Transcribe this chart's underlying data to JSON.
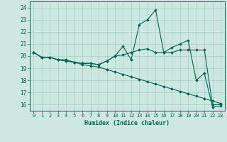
{
  "xlabel": "Humidex (Indice chaleur)",
  "xlim": [
    -0.5,
    23.5
  ],
  "ylim": [
    15.5,
    24.5
  ],
  "yticks": [
    16,
    17,
    18,
    19,
    20,
    21,
    22,
    23,
    24
  ],
  "xticks": [
    0,
    1,
    2,
    3,
    4,
    5,
    6,
    7,
    8,
    9,
    10,
    11,
    12,
    13,
    14,
    15,
    16,
    17,
    18,
    19,
    20,
    21,
    22,
    23
  ],
  "bg_color": "#cce8e0",
  "grid_color": "#a8ccc8",
  "line_color": "#006858",
  "series": [
    [
      20.3,
      19.9,
      19.9,
      19.7,
      19.7,
      19.5,
      19.4,
      19.4,
      19.3,
      19.6,
      20.0,
      20.8,
      19.7,
      22.6,
      23.0,
      23.8,
      20.3,
      20.7,
      21.0,
      21.3,
      18.0,
      18.6,
      15.8,
      15.9
    ],
    [
      20.3,
      19.9,
      19.9,
      19.7,
      19.6,
      19.5,
      19.4,
      19.4,
      19.3,
      19.6,
      20.0,
      20.1,
      20.3,
      20.5,
      20.6,
      20.3,
      20.3,
      20.3,
      20.5,
      20.5,
      20.5,
      20.5,
      16.0,
      16.0
    ],
    [
      20.3,
      19.9,
      19.9,
      19.7,
      19.6,
      19.5,
      19.3,
      19.2,
      19.1,
      18.9,
      18.7,
      18.5,
      18.3,
      18.1,
      17.9,
      17.7,
      17.5,
      17.3,
      17.1,
      16.9,
      16.7,
      16.5,
      16.3,
      16.1
    ]
  ]
}
